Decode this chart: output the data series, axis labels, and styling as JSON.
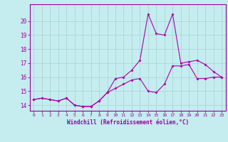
{
  "xlabel": "Windchill (Refroidissement éolien,°C)",
  "bg_color": "#c5ecee",
  "line_color": "#aa00aa",
  "grid_color": "#aad8dc",
  "axis_color": "#990099",
  "x_ticks": [
    0,
    1,
    2,
    3,
    4,
    5,
    6,
    7,
    8,
    9,
    10,
    11,
    12,
    13,
    14,
    15,
    16,
    17,
    18,
    19,
    20,
    21,
    22,
    23
  ],
  "y_ticks": [
    14,
    15,
    16,
    17,
    18,
    19,
    20
  ],
  "ylim": [
    13.6,
    21.2
  ],
  "xlim": [
    -0.5,
    23.5
  ],
  "series_peak": [
    14.4,
    14.5,
    14.4,
    14.3,
    14.5,
    14.0,
    13.9,
    13.9,
    14.3,
    14.9,
    15.9,
    16.0,
    16.5,
    17.2,
    20.5,
    19.1,
    19.0,
    20.5,
    17.0,
    17.1,
    17.2,
    16.9,
    16.4,
    16.0
  ],
  "series_low": [
    14.4,
    14.5,
    14.4,
    14.3,
    14.5,
    14.0,
    13.9,
    13.9,
    14.3,
    14.9,
    15.2,
    15.5,
    15.8,
    15.9,
    15.0,
    14.9,
    15.5,
    16.8,
    16.8,
    16.9,
    15.9,
    15.9,
    16.0,
    16.0
  ]
}
